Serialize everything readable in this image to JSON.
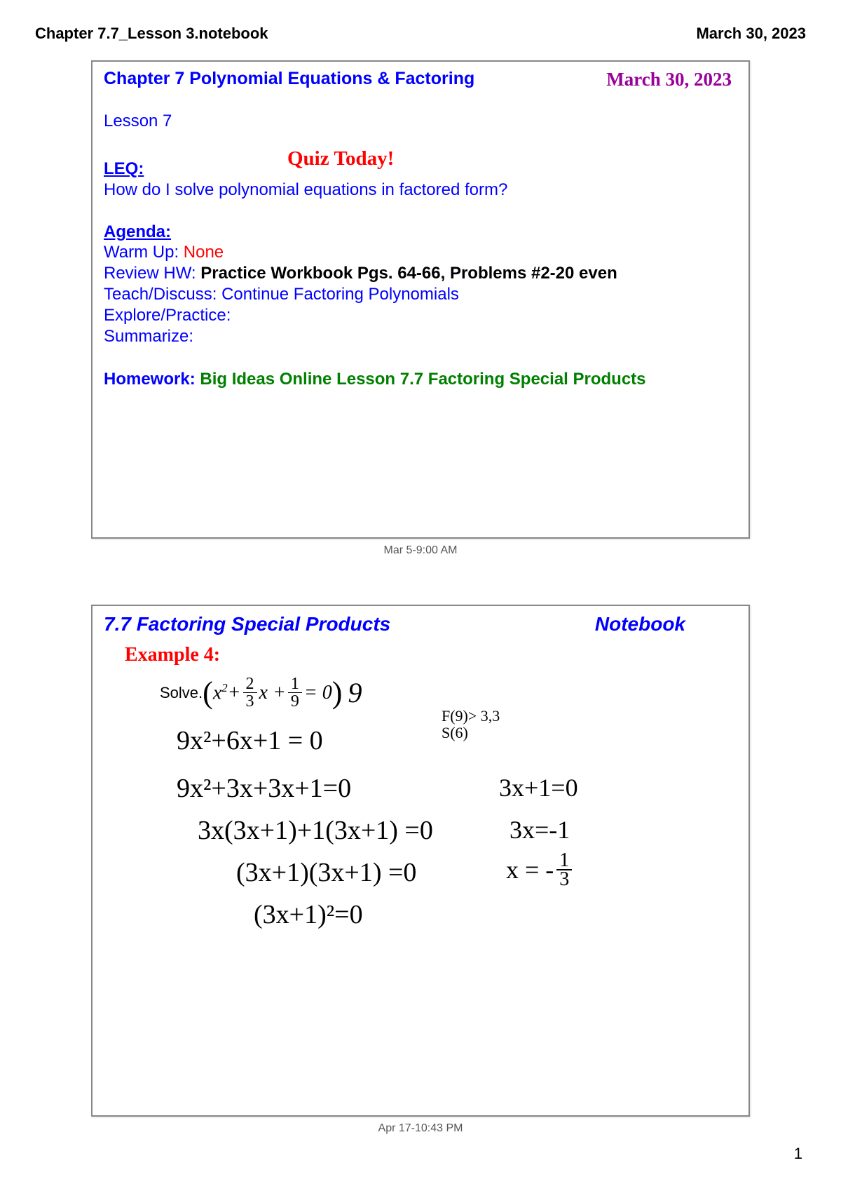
{
  "header": {
    "filename": "Chapter 7.7_Lesson 3.notebook",
    "date": "March 30, 2023"
  },
  "slide1": {
    "chapter_title": "Chapter 7 Polynomial Equations & Factoring",
    "date_hand": "March 30, 2023",
    "lesson": "Lesson 7",
    "quiz": "Quiz Today!",
    "leq_label": "LEQ:",
    "leq_text": "How do I solve polynomial equations in factored form?",
    "agenda_label": "Agenda:",
    "warmup_label": "Warm Up: ",
    "warmup_value": "None",
    "review_label": "Review HW:  ",
    "review_value": "Practice Workbook Pgs. 64-66, Problems #2-20 even",
    "teach_label": "Teach/Discuss:  ",
    "teach_value": "Continue Factoring Polynomials",
    "explore_label": "Explore/Practice:",
    "summarize_label": "Summarize:",
    "homework_label": "Homework: ",
    "homework_value": "Big Ideas Online Lesson 7.7 Factoring Special Products",
    "caption": "Mar 5-9:00 AM"
  },
  "slide2": {
    "title": "7.7 Factoring Special Products",
    "notebook": "Notebook",
    "example": "Example 4:",
    "solve": "Solve.",
    "eq_x2": "x",
    "eq_plus": " + ",
    "eq_frac1_num": "2",
    "eq_frac1_den": "3",
    "eq_x": " x + ",
    "eq_frac2_num": "1",
    "eq_frac2_den": "9",
    "eq_eq0": " = 0",
    "hand_9": "9",
    "fs_line1": "F(9)",
    "fs_line2": "S(6)",
    "fs_arrow": "> 3,3",
    "work_line1": "9x²+6x+1 = 0",
    "work_line2": "9x²+3x+3x+1=0",
    "work_line3": "3x(3x+1)+1(3x+1) =0",
    "work_line4": "(3x+1)(3x+1) =0",
    "work_line5": "(3x+1)²=0",
    "right_line1": "3x+1=0",
    "right_line2": "3x=-1",
    "right_line3_pre": "x = -",
    "right_frac_num": "1",
    "right_frac_den": "3",
    "caption": "Apr 17-10:43 PM"
  },
  "page_number": "1",
  "colors": {
    "blue": "#0000ff",
    "red": "#ff0000",
    "purple": "#990099",
    "green": "#008000",
    "black": "#000000"
  }
}
